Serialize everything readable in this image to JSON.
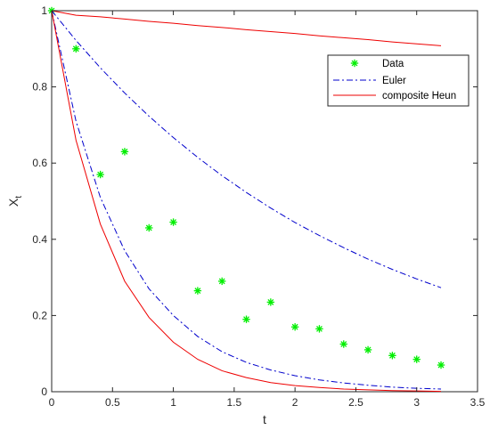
{
  "chart_data": {
    "type": "line",
    "title": "",
    "xlabel": "t",
    "ylabel": "X",
    "ylabel_subscript": "t",
    "xlim": [
      0,
      3.5
    ],
    "ylim": [
      0,
      1
    ],
    "xticks": [
      0,
      0.5,
      1,
      1.5,
      2,
      2.5,
      3,
      3.5
    ],
    "xtick_labels": [
      "0",
      "0.5",
      "1",
      "1.5",
      "2",
      "2.5",
      "3",
      "3.5"
    ],
    "yticks": [
      0,
      0.2,
      0.4,
      0.6,
      0.8,
      1
    ],
    "ytick_labels": [
      "0",
      "0.2",
      "0.4",
      "0.6",
      "0.8",
      "1"
    ],
    "grid": false,
    "legend_position": "top-right",
    "colors": {
      "data": "#00ee00",
      "euler": "#0000cc",
      "heun": "#ee0000"
    },
    "legend": [
      {
        "label": "Data",
        "style": "marker"
      },
      {
        "label": "Euler",
        "style": "dashdot"
      },
      {
        "label": "composite Heun",
        "style": "solid"
      }
    ],
    "series": [
      {
        "name": "Data",
        "kind": "scatter",
        "x": [
          0,
          0.2,
          0.4,
          0.6,
          0.8,
          1.0,
          1.2,
          1.4,
          1.6,
          1.8,
          2.0,
          2.2,
          2.4,
          2.6,
          2.8,
          3.0,
          3.2
        ],
        "y": [
          1.0,
          0.9,
          0.57,
          0.63,
          0.43,
          0.445,
          0.265,
          0.29,
          0.19,
          0.235,
          0.17,
          0.165,
          0.125,
          0.11,
          0.095,
          0.085,
          0.07
        ]
      },
      {
        "name": "Euler",
        "kind": "dashdot",
        "x": [
          0,
          0.2,
          0.4,
          0.6,
          0.8,
          1.0,
          1.2,
          1.4,
          1.6,
          1.8,
          2.0,
          2.2,
          2.4,
          2.6,
          2.8,
          3.0,
          3.2
        ],
        "y": [
          1.0,
          0.922,
          0.85,
          0.784,
          0.723,
          0.667,
          0.615,
          0.567,
          0.523,
          0.482,
          0.444,
          0.41,
          0.378,
          0.348,
          0.321,
          0.296,
          0.273
        ]
      },
      {
        "name": "Euler",
        "kind": "dashdot",
        "x": [
          0,
          0.2,
          0.4,
          0.6,
          0.8,
          1.0,
          1.2,
          1.4,
          1.6,
          1.8,
          2.0,
          2.2,
          2.4,
          2.6,
          2.8,
          3.0,
          3.2
        ],
        "y": [
          1.0,
          0.71,
          0.51,
          0.37,
          0.27,
          0.2,
          0.145,
          0.105,
          0.077,
          0.057,
          0.042,
          0.031,
          0.023,
          0.017,
          0.012,
          0.009,
          0.007
        ]
      },
      {
        "name": "composite Heun",
        "kind": "solid",
        "x": [
          0,
          0.2,
          0.4,
          0.6,
          0.8,
          1.0,
          1.2,
          1.4,
          1.6,
          1.8,
          2.0,
          2.2,
          2.4,
          2.6,
          2.8,
          3.0,
          3.2
        ],
        "y": [
          1.0,
          0.988,
          0.984,
          0.978,
          0.972,
          0.967,
          0.961,
          0.956,
          0.95,
          0.945,
          0.94,
          0.934,
          0.929,
          0.924,
          0.918,
          0.913,
          0.908
        ]
      },
      {
        "name": "composite Heun",
        "kind": "solid",
        "x": [
          0,
          0.2,
          0.4,
          0.6,
          0.8,
          1.0,
          1.2,
          1.4,
          1.6,
          1.8,
          2.0,
          2.2,
          2.4,
          2.6,
          2.8,
          3.0,
          3.2
        ],
        "y": [
          1.0,
          0.66,
          0.44,
          0.29,
          0.195,
          0.13,
          0.085,
          0.055,
          0.037,
          0.024,
          0.016,
          0.011,
          0.007,
          0.005,
          0.003,
          0.002,
          0.001
        ]
      }
    ]
  }
}
